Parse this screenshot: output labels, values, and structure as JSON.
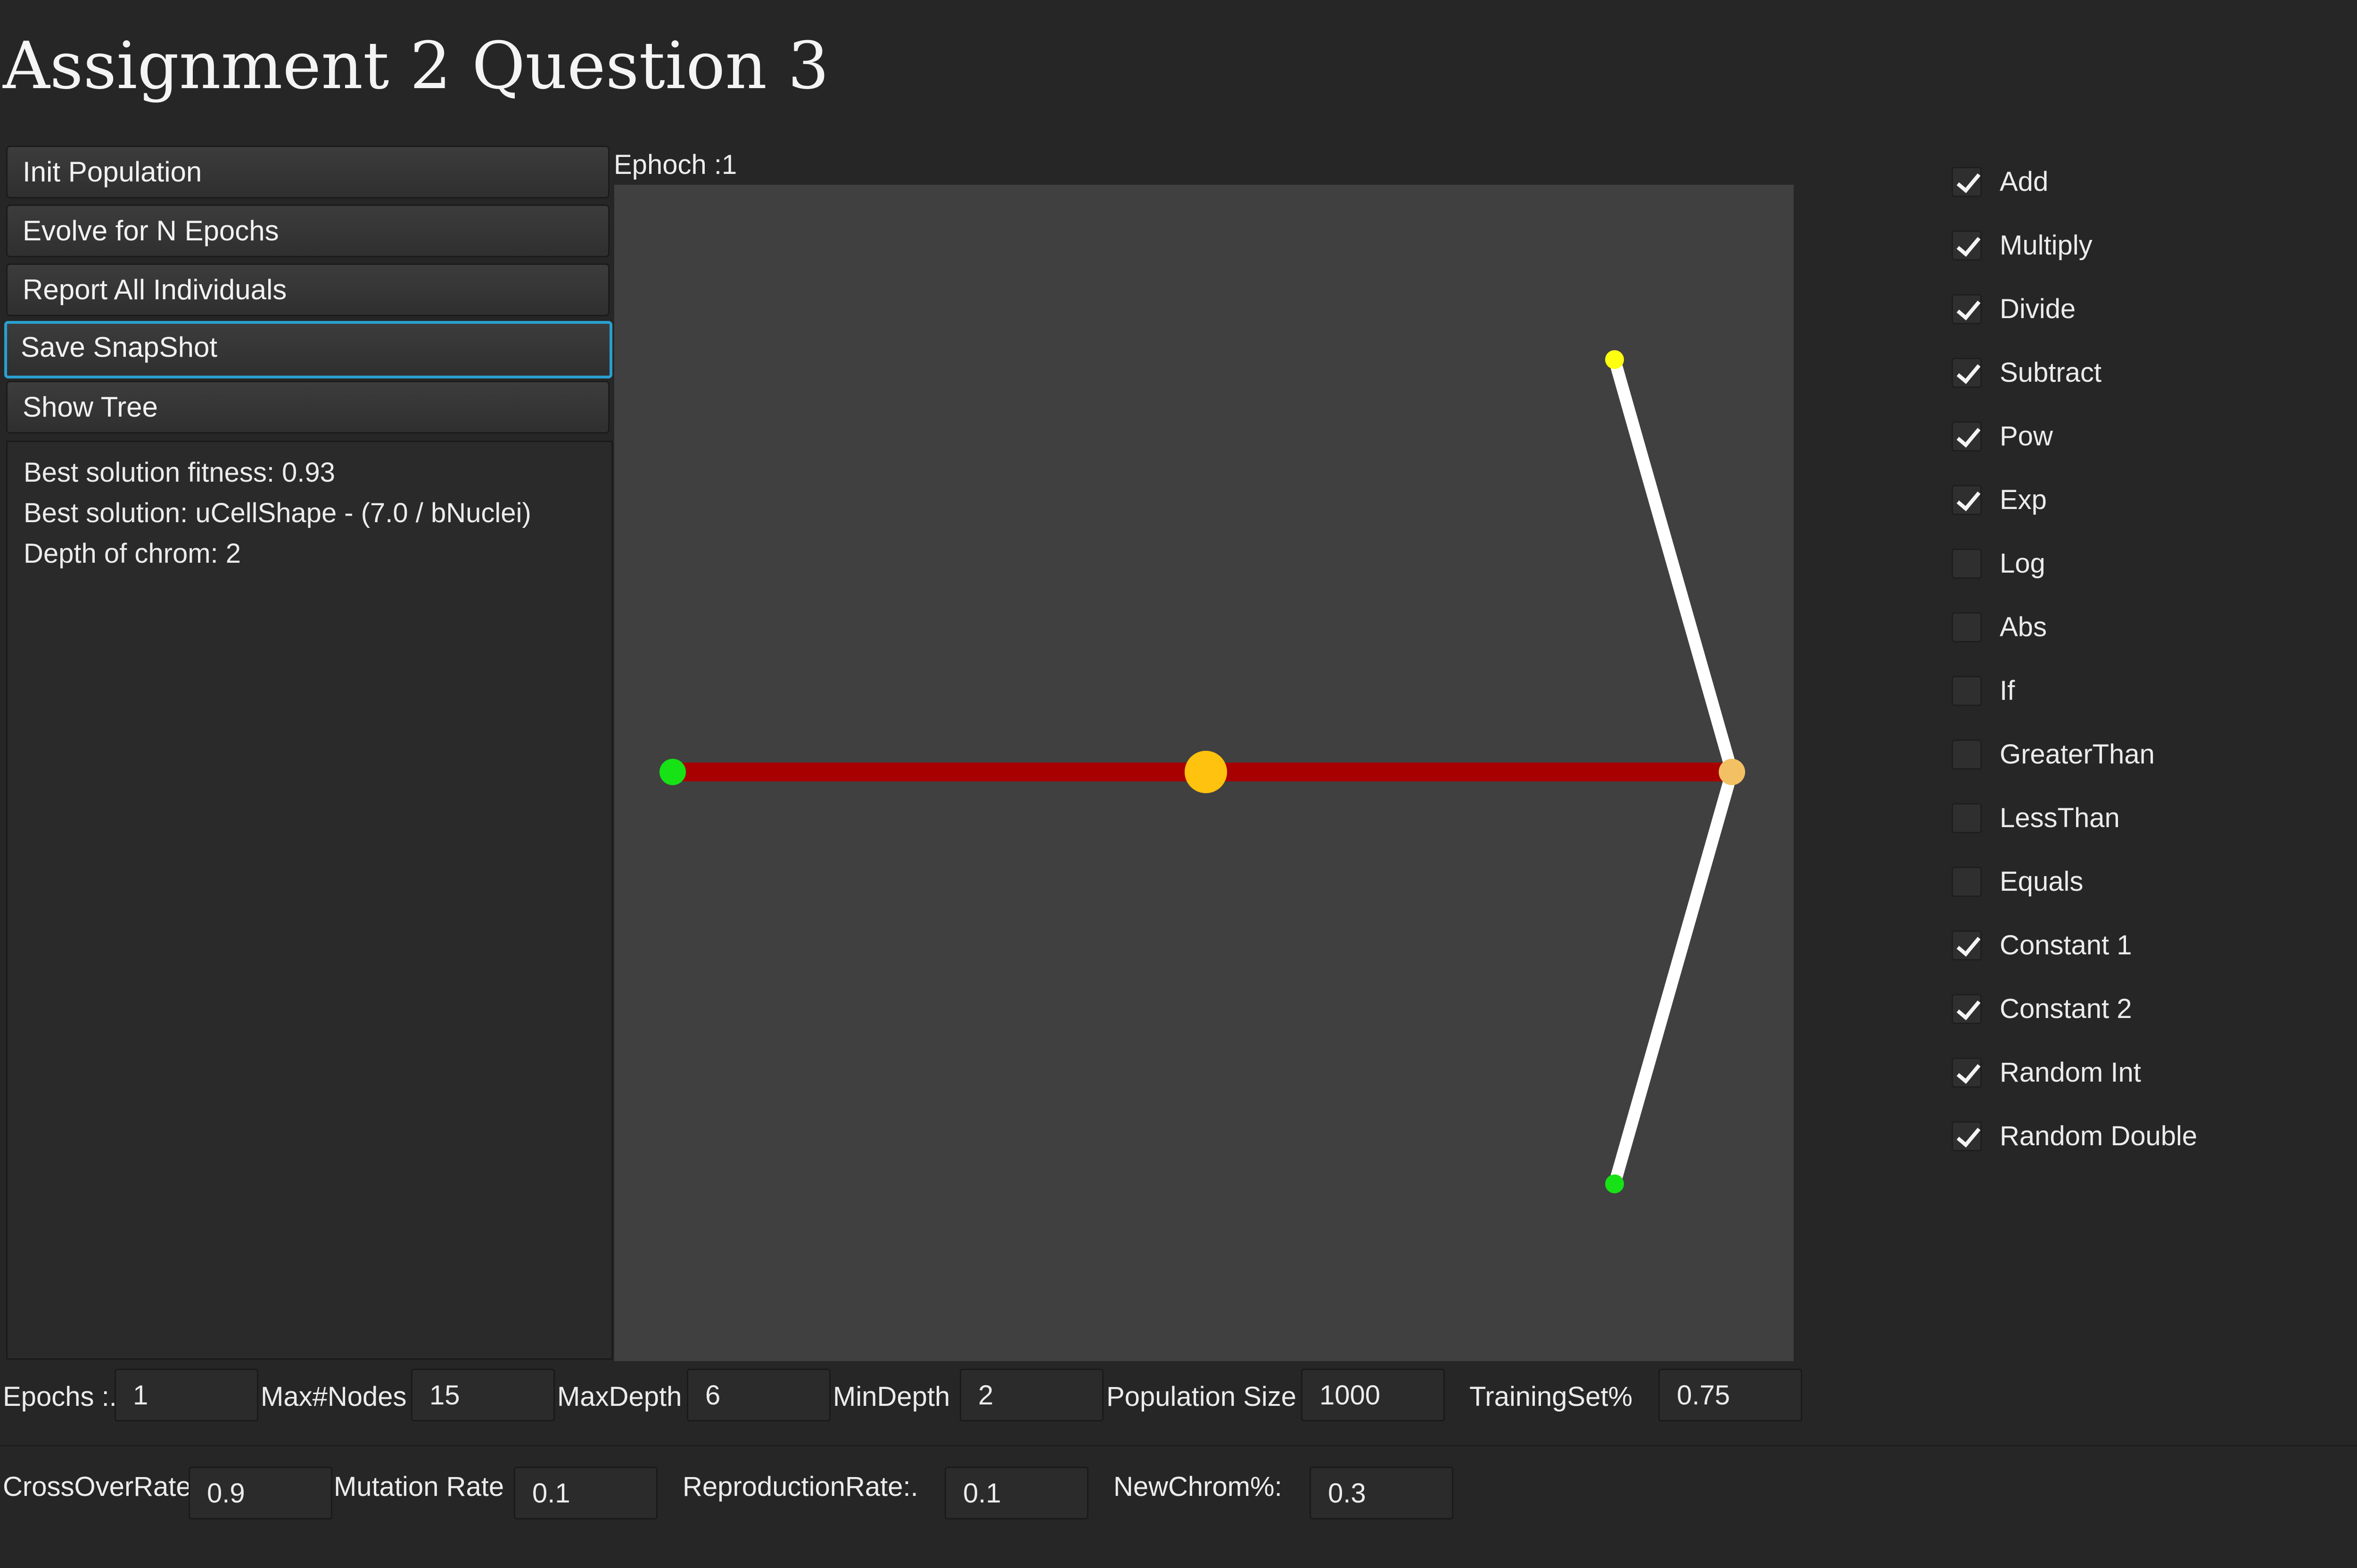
{
  "window": {
    "title": "Assignment 2 Question 3"
  },
  "actions": {
    "init_population": "Init Population",
    "evolve": "Evolve for N Epochs",
    "report_all": "Report All Individuals",
    "save_snapshot": "Save SnapShot",
    "show_tree": "Show Tree"
  },
  "output": {
    "line1": "Best solution fitness: 0.93",
    "line2": "Best solution: uCellShape - (7.0 / bNuclei)",
    "line3": "Depth of chrom: 2"
  },
  "epoch_label": "Ephoch :1",
  "tree": {
    "root_operator": "Subtract",
    "division_operator": "Divide",
    "leaves": [
      "uCellShape",
      "7.0",
      "bNuclei"
    ],
    "colors": {
      "background": "#404040",
      "edge_root": "#a80000",
      "edge_child": "#ffffff",
      "leaf_terminal": "#16e216",
      "root_node": "#ffc20e",
      "operator_node": "#f3c163",
      "constant_node": "#ffff12"
    }
  },
  "operators": [
    {
      "label": "Add",
      "checked": true
    },
    {
      "label": "Multiply",
      "checked": true
    },
    {
      "label": "Divide",
      "checked": true
    },
    {
      "label": "Subtract",
      "checked": true
    },
    {
      "label": "Pow",
      "checked": true
    },
    {
      "label": "Exp",
      "checked": true
    },
    {
      "label": "Log",
      "checked": false
    },
    {
      "label": "Abs",
      "checked": false
    },
    {
      "label": "If",
      "checked": false
    },
    {
      "label": "GreaterThan",
      "checked": false
    },
    {
      "label": "LessThan",
      "checked": false
    },
    {
      "label": "Equals",
      "checked": false
    },
    {
      "label": "Constant 1",
      "checked": true
    },
    {
      "label": "Constant 2",
      "checked": true
    },
    {
      "label": "Random Int",
      "checked": true
    },
    {
      "label": "Random Double",
      "checked": true
    }
  ],
  "params": {
    "epochs": {
      "label": "Epochs :.",
      "value": "1"
    },
    "max_nodes": {
      "label": "Max#Nodes",
      "value": "15"
    },
    "max_depth": {
      "label": "MaxDepth",
      "value": "6"
    },
    "min_depth": {
      "label": "MinDepth",
      "value": "2"
    },
    "population_size": {
      "label": "Population Size",
      "value": "1000"
    },
    "training_set": {
      "label": "TrainingSet%",
      "value": "0.75"
    },
    "crossover_rate": {
      "label": "CrossOverRate",
      "value": "0.9"
    },
    "mutation_rate": {
      "label": "Mutation Rate",
      "value": "0.1"
    },
    "reproduction_rate": {
      "label": "ReproductionRate:.",
      "value": "0.1"
    },
    "new_chrom": {
      "label": "NewChrom%:",
      "value": "0.3"
    }
  }
}
